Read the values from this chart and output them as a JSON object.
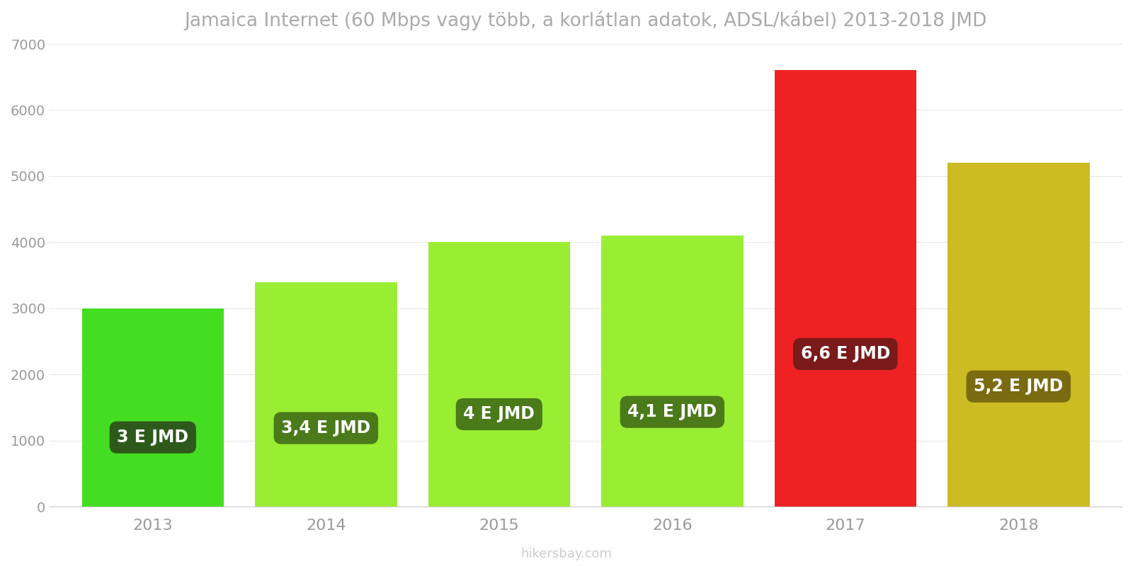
{
  "years": [
    2013,
    2014,
    2015,
    2016,
    2017,
    2018
  ],
  "values": [
    3000,
    3400,
    4000,
    4100,
    6600,
    5200
  ],
  "bar_colors": [
    "#44dd22",
    "#99ee33",
    "#99ee33",
    "#99ee33",
    "#ee2222",
    "#ccbb22"
  ],
  "label_bg_colors": [
    "#2d5a1b",
    "#4a7a1a",
    "#4a7a1a",
    "#4a7a1a",
    "#7a1a1a",
    "#7a6a10"
  ],
  "labels": [
    "3 E JMD",
    "3,4 E JMD",
    "4 E JMD",
    "4,1 E JMD",
    "6,6 E JMD",
    "5,2 E JMD"
  ],
  "title": "Jamaica Internet (60 Mbps vagy több, a korlátlan adatok, ADSL/kábel) 2013-2018 JMD",
  "ylim": [
    0,
    7000
  ],
  "yticks": [
    0,
    1000,
    2000,
    3000,
    4000,
    5000,
    6000,
    7000
  ],
  "label_text_color": "#ffffff",
  "watermark": "hikersbay.com",
  "title_color": "#aaaaaa",
  "bg_color": "#ffffff",
  "bar_width": 0.82
}
